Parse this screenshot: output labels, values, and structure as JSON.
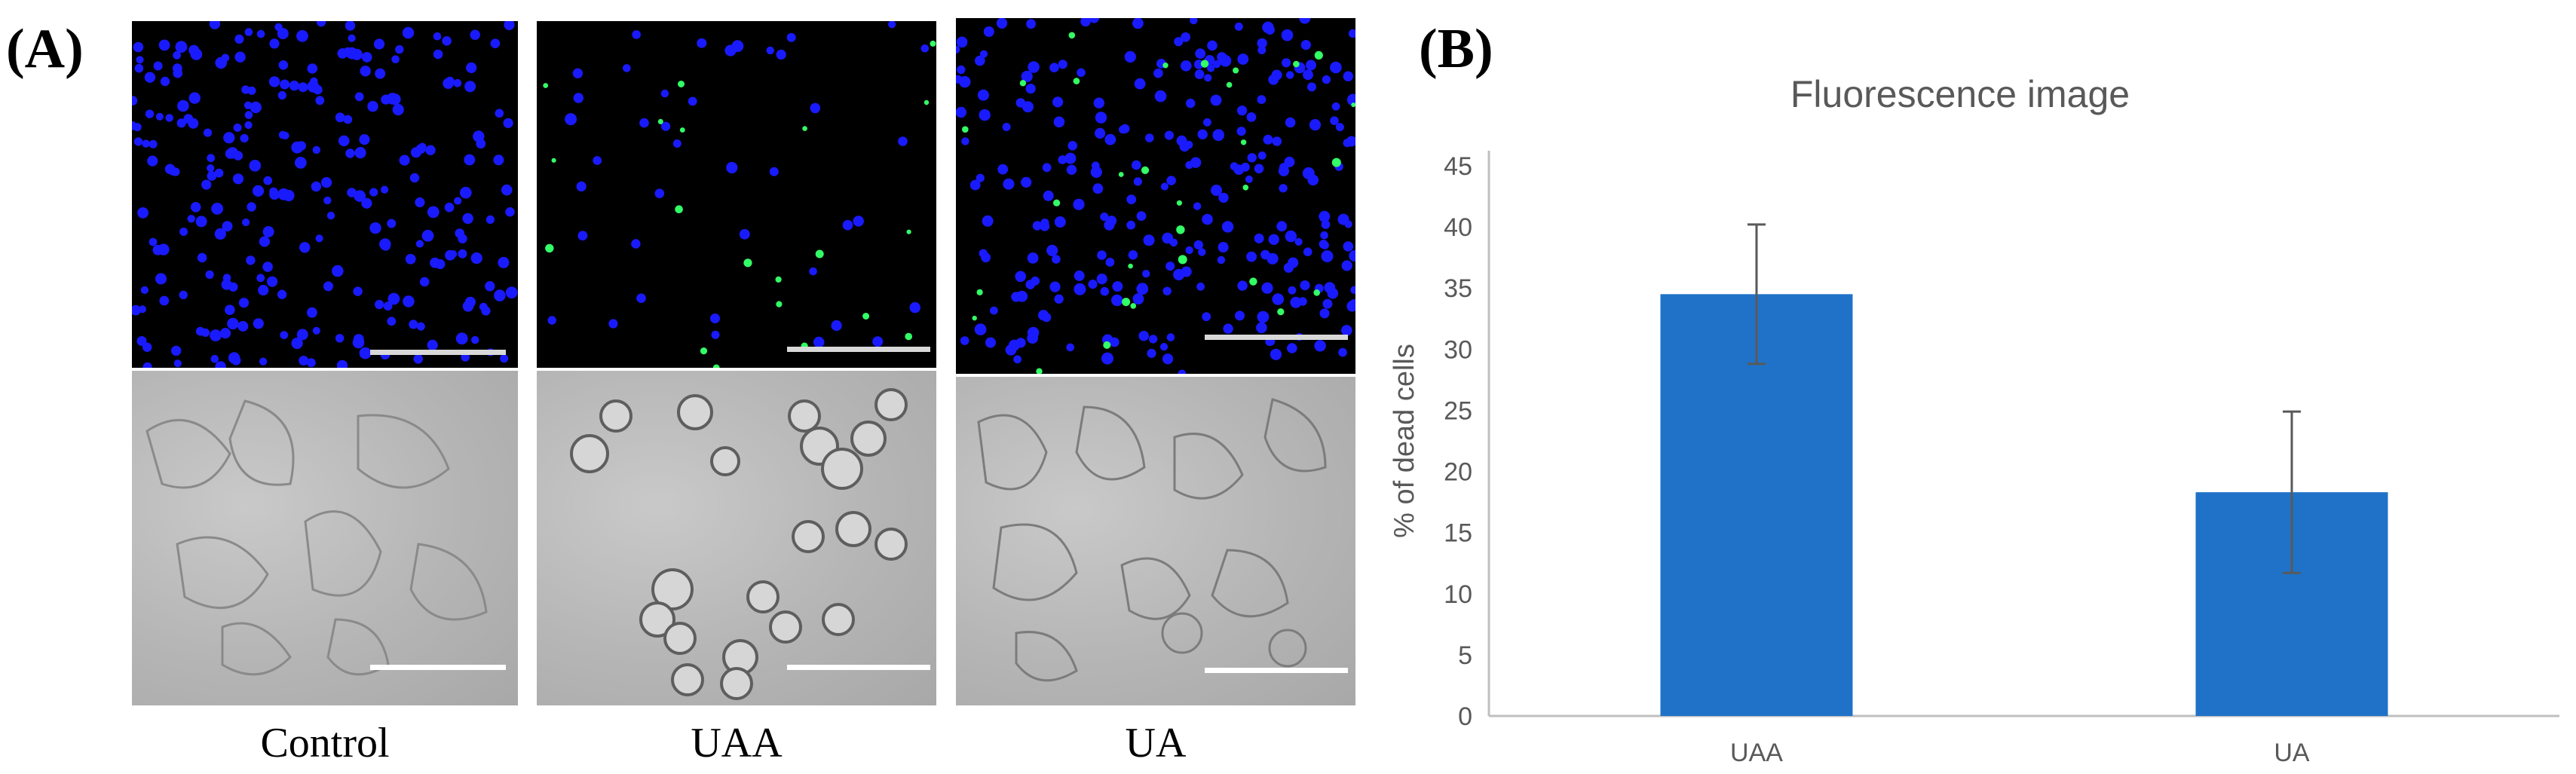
{
  "panel_a": {
    "label": "(A)",
    "conditions": [
      {
        "name": "Control",
        "dapi_density": "high",
        "dead_cells": "none"
      },
      {
        "name": "UAA",
        "dapi_density": "low",
        "dead_cells": "many"
      },
      {
        "name": "UA",
        "dapi_density": "high",
        "dead_cells": "some"
      }
    ],
    "colors": {
      "dapi": "#1a1aff",
      "dead": "#33ff66"
    }
  },
  "panel_b": {
    "label": "(B)"
  },
  "chart_data": {
    "type": "bar",
    "title": "Fluorescence image",
    "xlabel": "",
    "ylabel": "% of dead cells",
    "categories": [
      "UAA",
      "UA"
    ],
    "values": [
      34.5,
      18.3
    ],
    "errors": [
      5.7,
      6.6
    ],
    "ylim": [
      0,
      45
    ],
    "yticks": [
      0,
      5,
      10,
      15,
      20,
      25,
      30,
      35,
      40,
      45
    ],
    "grid": false,
    "legend": "none",
    "bar_color": "#1f72c8",
    "error_color": "#595959",
    "axis_color": "#bfbfbf"
  }
}
